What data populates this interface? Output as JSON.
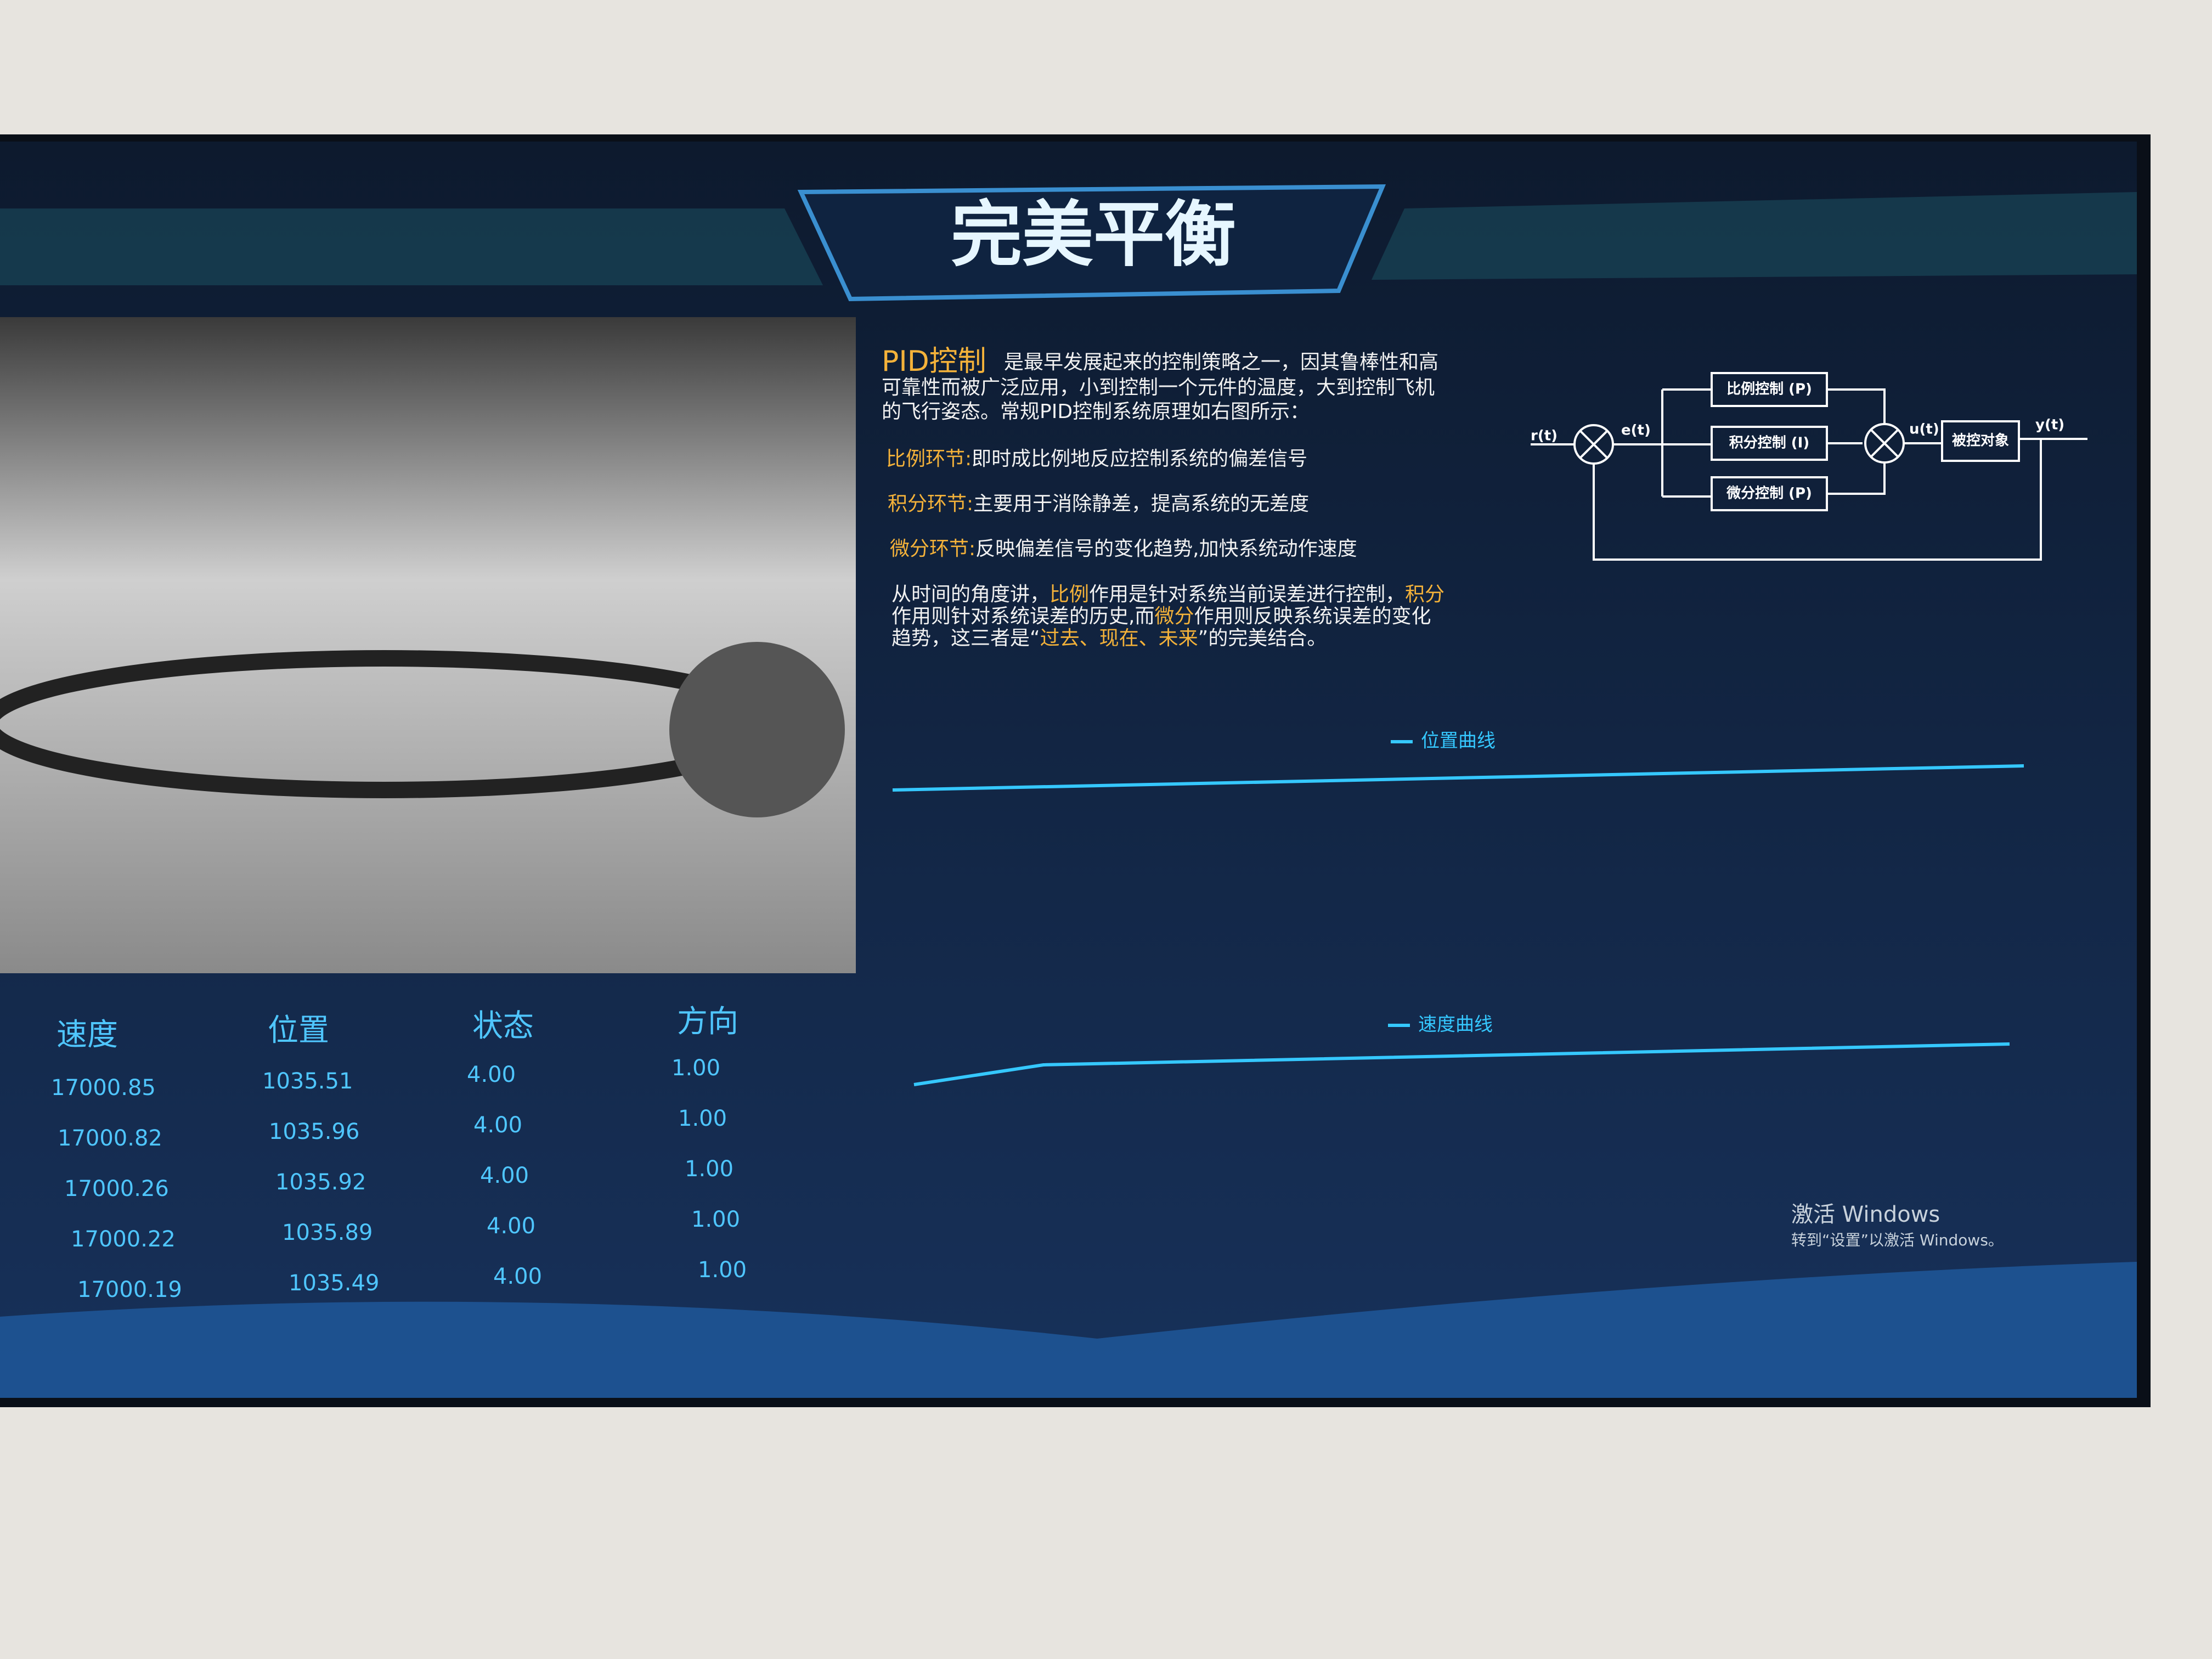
{
  "header": {
    "title": "完美平衡"
  },
  "intro": {
    "keyword": "PID控制",
    "lines": [
      "是最早发展起来的控制策略之一，因其鲁棒性和高",
      "可靠性而被广泛应用，小到控制一个元件的温度，大到控制飞机",
      "的飞行姿态。常规PID控制系统原理如右图所示："
    ]
  },
  "sections": [
    {
      "label": "比例环节:",
      "text": "即时成比例地反应控制系统的偏差信号"
    },
    {
      "label": "积分环节:",
      "text": "主要用于消除静差，提高系统的无差度"
    },
    {
      "label": "微分环节:",
      "text": "反映偏差信号的变化趋势,加快系统动作速度"
    }
  ],
  "paragraph": {
    "lines": [
      [
        "从时间的角度讲，",
        "比例",
        "作用是针对系统当前误差进行控制，",
        "积分"
      ],
      [
        "作用则针对系统误差的历史,而",
        "微分",
        "作用则反映系统误差的变化"
      ],
      [
        "趋势，这三者是“",
        "过去、现在、未来",
        "”的完美结合。"
      ]
    ]
  },
  "diagram": {
    "input": "r(t)",
    "error": "e(t)",
    "blocks": [
      "比例控制 (P)",
      "积分控制 (I)",
      "微分控制 (P)"
    ],
    "control": "u(t)",
    "plant": "被控对象",
    "output": "y(t)"
  },
  "charts": {
    "position": "位置曲线",
    "speed": "速度曲线"
  },
  "table": {
    "headers": [
      "速度",
      "位置",
      "状态",
      "方向"
    ],
    "rows": [
      [
        "17000.85",
        "1035.51",
        "4.00",
        "1.00"
      ],
      [
        "17000.82",
        "1035.96",
        "4.00",
        "1.00"
      ],
      [
        "17000.26",
        "1035.92",
        "4.00",
        "1.00"
      ],
      [
        "17000.22",
        "1035.89",
        "4.00",
        "1.00"
      ],
      [
        "17000.19",
        "1035.49",
        "4.00",
        "1.00"
      ]
    ]
  },
  "watermark": {
    "title": "激活 Windows",
    "subtitle": "转到“设置”以激活 Windows。"
  }
}
